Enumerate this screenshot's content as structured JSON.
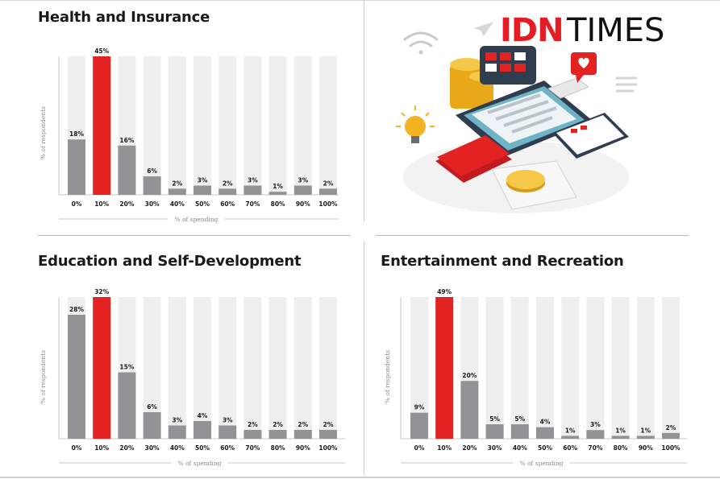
{
  "logo": {
    "part1": "IDN",
    "part2": "TIMES"
  },
  "colors": {
    "highlight": "#e32222",
    "bar": "#939395",
    "track": "#efeff0"
  },
  "chart_data": [
    {
      "type": "bar",
      "title": "Health and Insurance",
      "xlabel": "% of spending",
      "ylabel": "% of respondents",
      "categories": [
        "0%",
        "10%",
        "20%",
        "30%",
        "40%",
        "50%",
        "60%",
        "70%",
        "80%",
        "90%",
        "100%"
      ],
      "values": [
        18,
        45,
        16,
        6,
        2,
        3,
        2,
        3,
        1,
        3,
        2
      ],
      "value_labels": [
        "18%",
        "45%",
        "16%",
        "6%",
        "2%",
        "3%",
        "2%",
        "3%",
        "1%",
        "3%",
        "2%"
      ],
      "highlight_index": 1,
      "ylim": [
        0,
        45
      ]
    },
    {
      "type": "bar",
      "title": "Education and Self-Development",
      "xlabel": "% of spending",
      "ylabel": "% of respondents",
      "categories": [
        "0%",
        "10%",
        "20%",
        "30%",
        "40%",
        "50%",
        "60%",
        "70%",
        "80%",
        "90%",
        "100%"
      ],
      "values": [
        28,
        32,
        15,
        6,
        3,
        4,
        3,
        2,
        2,
        2,
        2
      ],
      "value_labels": [
        "28%",
        "32%",
        "15%",
        "6%",
        "3%",
        "4%",
        "3%",
        "2%",
        "2%",
        "2%",
        "2%"
      ],
      "highlight_index": 1,
      "ylim": [
        0,
        32
      ]
    },
    {
      "type": "bar",
      "title": "Entertainment and Recreation",
      "xlabel": "% of spending",
      "ylabel": "% of respondents",
      "categories": [
        "0%",
        "10%",
        "20%",
        "30%",
        "40%",
        "50%",
        "60%",
        "70%",
        "80%",
        "90%",
        "100%"
      ],
      "values": [
        9,
        49,
        20,
        5,
        5,
        4,
        1,
        3,
        1,
        1,
        2
      ],
      "value_labels": [
        "9%",
        "49%",
        "20%",
        "5%",
        "5%",
        "4%",
        "1%",
        "3%",
        "1%",
        "1%",
        "2%"
      ],
      "highlight_index": 1,
      "ylim": [
        0,
        49
      ]
    }
  ]
}
